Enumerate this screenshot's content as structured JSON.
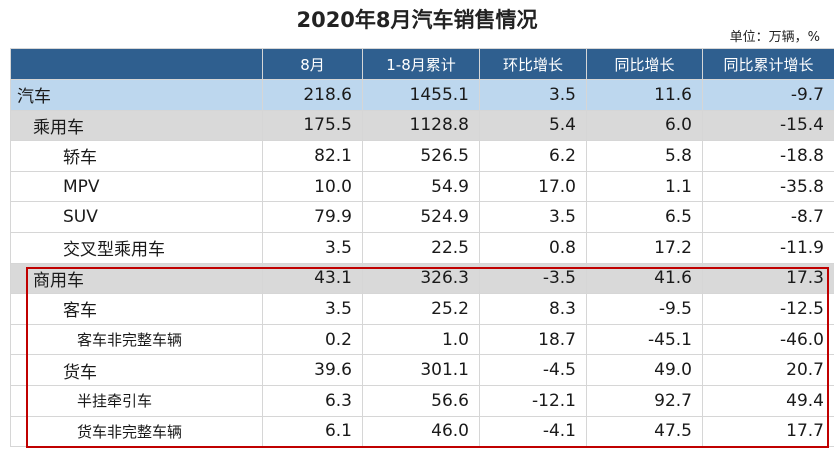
{
  "title": "2020年8月汽车销售情况",
  "unit": "单位：万辆，%",
  "columns": [
    "",
    "8月",
    "1-8月累计",
    "环比增长",
    "同比增长",
    "同比累计增长"
  ],
  "rows": [
    {
      "label": "汽车",
      "level": 0,
      "style": "total",
      "values": [
        "218.6",
        "1455.1",
        "3.5",
        "11.6",
        "-9.7"
      ]
    },
    {
      "label": "乘用车",
      "level": 1,
      "style": "group",
      "values": [
        "175.5",
        "1128.8",
        "5.4",
        "6.0",
        "-15.4"
      ]
    },
    {
      "label": "轿车",
      "level": 2,
      "style": "",
      "values": [
        "82.1",
        "526.5",
        "6.2",
        "5.8",
        "-18.8"
      ]
    },
    {
      "label": "MPV",
      "level": 2,
      "style": "",
      "values": [
        "10.0",
        "54.9",
        "17.0",
        "1.1",
        "-35.8"
      ]
    },
    {
      "label": "SUV",
      "level": 2,
      "style": "",
      "values": [
        "79.9",
        "524.9",
        "3.5",
        "6.5",
        "-8.7"
      ]
    },
    {
      "label": "交叉型乘用车",
      "level": 2,
      "style": "",
      "values": [
        "3.5",
        "22.5",
        "0.8",
        "17.2",
        "-11.9"
      ]
    },
    {
      "label": "商用车",
      "level": 1,
      "style": "group",
      "values": [
        "43.1",
        "326.3",
        "-3.5",
        "41.6",
        "17.3"
      ]
    },
    {
      "label": "客车",
      "level": 2,
      "style": "",
      "values": [
        "3.5",
        "25.2",
        "8.3",
        "-9.5",
        "-12.5"
      ]
    },
    {
      "label": "客车非完整车辆",
      "level": 3,
      "style": "",
      "values": [
        "0.2",
        "1.0",
        "18.7",
        "-45.1",
        "-46.0"
      ]
    },
    {
      "label": "货车",
      "level": 2,
      "style": "",
      "values": [
        "39.6",
        "301.1",
        "-4.5",
        "49.0",
        "20.7"
      ]
    },
    {
      "label": "半挂牵引车",
      "level": 3,
      "style": "",
      "values": [
        "6.3",
        "56.6",
        "-12.1",
        "92.7",
        "49.4"
      ]
    },
    {
      "label": "货车非完整车辆",
      "level": 3,
      "style": "",
      "values": [
        "6.1",
        "46.0",
        "-4.1",
        "47.5",
        "17.7"
      ]
    }
  ],
  "colors": {
    "header": "#2f5f8f",
    "total_row": "#bdd7ee",
    "group_row": "#d9d9d9",
    "highlight": "#c00000"
  }
}
